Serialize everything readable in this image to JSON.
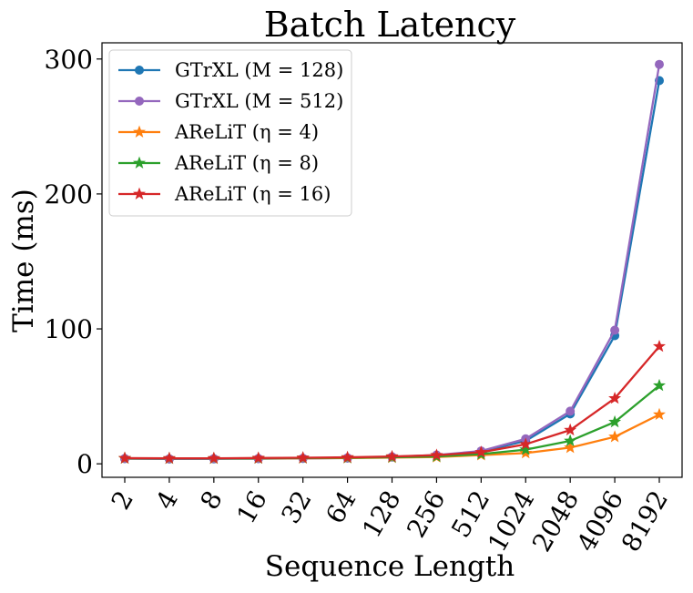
{
  "chart_data": {
    "type": "line",
    "title": "Batch Latency",
    "xlabel": "Sequence Length",
    "ylabel": "Time (ms)",
    "categories": [
      "2",
      "4",
      "8",
      "16",
      "32",
      "64",
      "128",
      "256",
      "512",
      "1024",
      "2048",
      "4096",
      "8192"
    ],
    "ylim": [
      -10,
      312
    ],
    "yticks": [
      0,
      100,
      200,
      300
    ],
    "legend_position": "top-left",
    "grid": false,
    "series": [
      {
        "name": "GTrXL (M = 128)",
        "marker": "circle",
        "color": "#1f77b4",
        "values": [
          3.8,
          3.6,
          3.7,
          3.8,
          4.0,
          4.3,
          5.0,
          6.2,
          9.0,
          17.0,
          37.0,
          95.0,
          284.0
        ]
      },
      {
        "name": "GTrXL (M = 512)",
        "marker": "circle",
        "color": "#9467bd",
        "values": [
          3.9,
          3.7,
          3.8,
          3.9,
          4.1,
          4.4,
          5.2,
          6.5,
          9.5,
          18.5,
          39.0,
          99.0,
          296.0
        ]
      },
      {
        "name": "AReLiT (η = 4)",
        "marker": "star",
        "color": "#ff7f0e",
        "values": [
          4.0,
          3.9,
          3.9,
          4.0,
          4.1,
          4.3,
          4.6,
          5.0,
          6.5,
          8.0,
          12.0,
          20.0,
          36.5
        ]
      },
      {
        "name": "AReLiT (η = 8)",
        "marker": "star",
        "color": "#2ca02c",
        "values": [
          4.1,
          4.0,
          4.0,
          4.1,
          4.3,
          4.5,
          4.9,
          5.5,
          7.2,
          10.5,
          17.0,
          31.0,
          58.0
        ]
      },
      {
        "name": "AReLiT (η = 16)",
        "marker": "star",
        "color": "#d62728",
        "values": [
          4.2,
          4.1,
          4.1,
          4.3,
          4.5,
          4.8,
          5.4,
          6.4,
          8.6,
          14.5,
          25.0,
          48.5,
          87.0
        ]
      }
    ]
  }
}
